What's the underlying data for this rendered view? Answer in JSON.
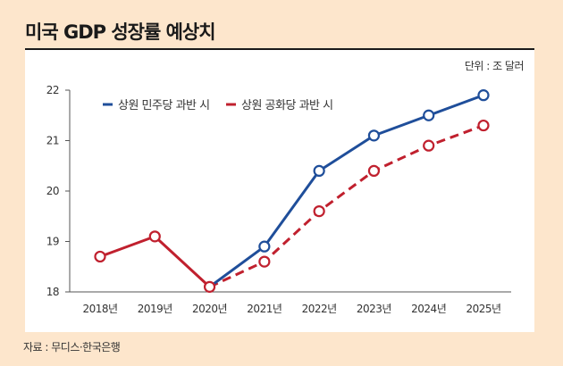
{
  "title": "미국 GDP 성장률 예상치",
  "unit": "단위 : 조 달러",
  "source": "자료 : 무디스·한국은행",
  "chart_data": {
    "type": "line",
    "title": "미국 GDP 성장률 예상치",
    "categories": [
      "2018년",
      "2019년",
      "2020년",
      "2021년",
      "2022년",
      "2023년",
      "2024년",
      "2025년"
    ],
    "yticks": [
      18,
      19,
      20,
      21,
      22
    ],
    "ylim": [
      18,
      22
    ],
    "grid": false,
    "legend_position": "top-left",
    "series": [
      {
        "name": "상원 민주당 과반 시",
        "color": "#1f4e9a",
        "style": "solid",
        "values": [
          null,
          null,
          18.1,
          18.9,
          20.4,
          21.1,
          21.5,
          21.9
        ]
      },
      {
        "name": "상원 공화당 과반 시",
        "color": "#c0202e",
        "style": "dashed",
        "values": [
          null,
          null,
          18.1,
          18.6,
          19.6,
          20.4,
          20.9,
          21.3
        ]
      },
      {
        "name": "",
        "color": "#c0202e",
        "style": "solid",
        "values": [
          18.7,
          19.1,
          18.1,
          null,
          null,
          null,
          null,
          null
        ]
      }
    ]
  }
}
